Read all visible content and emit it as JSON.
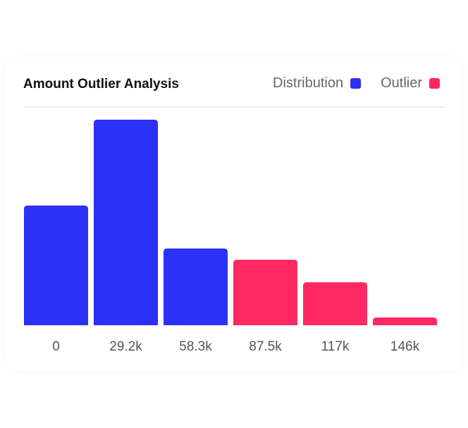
{
  "chart_data": {
    "type": "bar",
    "title": "Amount Outlier Analysis",
    "categories": [
      "0",
      "29.2k",
      "58.3k",
      "87.5k",
      "117k",
      "146k"
    ],
    "values": [
      170,
      292,
      109,
      93,
      61,
      11
    ],
    "groups": [
      "Distribution",
      "Distribution",
      "Distribution",
      "Outlier",
      "Outlier",
      "Outlier"
    ],
    "legend": [
      {
        "name": "Distribution",
        "color": "#2b31f7"
      },
      {
        "name": "Outlier",
        "color": "#ff2862"
      }
    ],
    "legend_position": "top-right",
    "ylim": [
      0,
      300
    ],
    "grid": false
  }
}
